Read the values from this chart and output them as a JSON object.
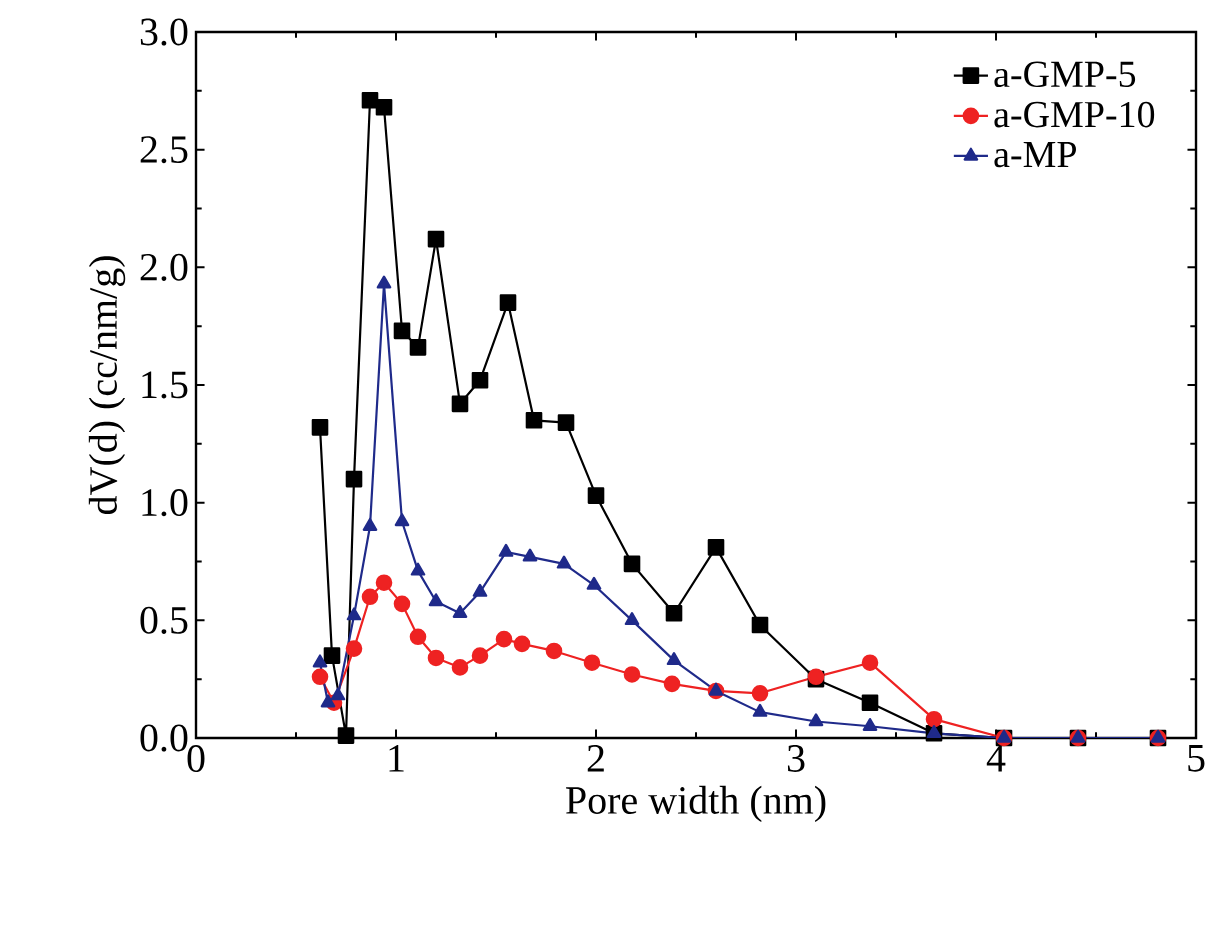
{
  "chart_data": {
    "type": "line",
    "xlabel": "Pore width (nm)",
    "ylabel": "dV(d) (cc/nm/g)",
    "xlim": [
      0,
      5
    ],
    "ylim": [
      0,
      3
    ],
    "xticks": [
      0,
      1,
      2,
      3,
      4,
      5
    ],
    "yticks": [
      {
        "value": 0,
        "label": "0.0"
      },
      0.5,
      {
        "value": 1,
        "label": "1.0"
      },
      1.5,
      {
        "value": 2,
        "label": "2.0"
      },
      2.5,
      {
        "value": 3,
        "label": "3.0"
      }
    ],
    "legend": "top right",
    "grid": false,
    "line_style": "solid",
    "series": [
      {
        "name": "a-GMP-5",
        "color": "#000000",
        "marker": "square",
        "x": [
          0.62,
          0.68,
          0.75,
          0.79,
          0.87,
          0.94,
          1.03,
          1.11,
          1.2,
          1.32,
          1.42,
          1.56,
          1.69,
          1.85,
          2.0,
          2.18,
          2.39,
          2.6,
          2.82,
          3.1,
          3.37,
          3.69,
          4.04,
          4.41,
          4.81
        ],
        "values": [
          1.32,
          0.35,
          0.01,
          1.1,
          2.71,
          2.68,
          1.73,
          1.66,
          2.12,
          1.42,
          1.52,
          1.85,
          1.35,
          1.34,
          1.03,
          0.74,
          0.53,
          0.81,
          0.48,
          0.25,
          0.15,
          0.02,
          0.0,
          0.0,
          0.0
        ]
      },
      {
        "name": "a-GMP-10",
        "color": "#ee2222",
        "marker": "circle",
        "x": [
          0.62,
          0.69,
          0.79,
          0.87,
          0.94,
          1.03,
          1.11,
          1.2,
          1.32,
          1.42,
          1.54,
          1.63,
          1.79,
          1.98,
          2.18,
          2.38,
          2.6,
          2.82,
          3.1,
          3.37,
          3.69,
          4.04,
          4.41,
          4.81
        ],
        "values": [
          0.26,
          0.15,
          0.38,
          0.6,
          0.66,
          0.57,
          0.43,
          0.34,
          0.3,
          0.35,
          0.42,
          0.4,
          0.37,
          0.32,
          0.27,
          0.23,
          0.2,
          0.19,
          0.26,
          0.32,
          0.08,
          0.0,
          0.0,
          0.0
        ]
      },
      {
        "name": "a-MP",
        "color": "#1f2a8a",
        "marker": "triangle",
        "x": [
          0.62,
          0.66,
          0.71,
          0.79,
          0.87,
          0.94,
          1.03,
          1.11,
          1.2,
          1.32,
          1.42,
          1.55,
          1.67,
          1.84,
          1.99,
          2.18,
          2.39,
          2.6,
          2.82,
          3.1,
          3.37,
          3.69,
          4.04,
          4.41,
          4.81
        ],
        "values": [
          0.32,
          0.15,
          0.18,
          0.52,
          0.9,
          1.93,
          0.92,
          0.71,
          0.58,
          0.53,
          0.62,
          0.79,
          0.77,
          0.74,
          0.65,
          0.5,
          0.33,
          0.2,
          0.11,
          0.07,
          0.05,
          0.02,
          0.0,
          0.0,
          0.0
        ]
      }
    ]
  }
}
